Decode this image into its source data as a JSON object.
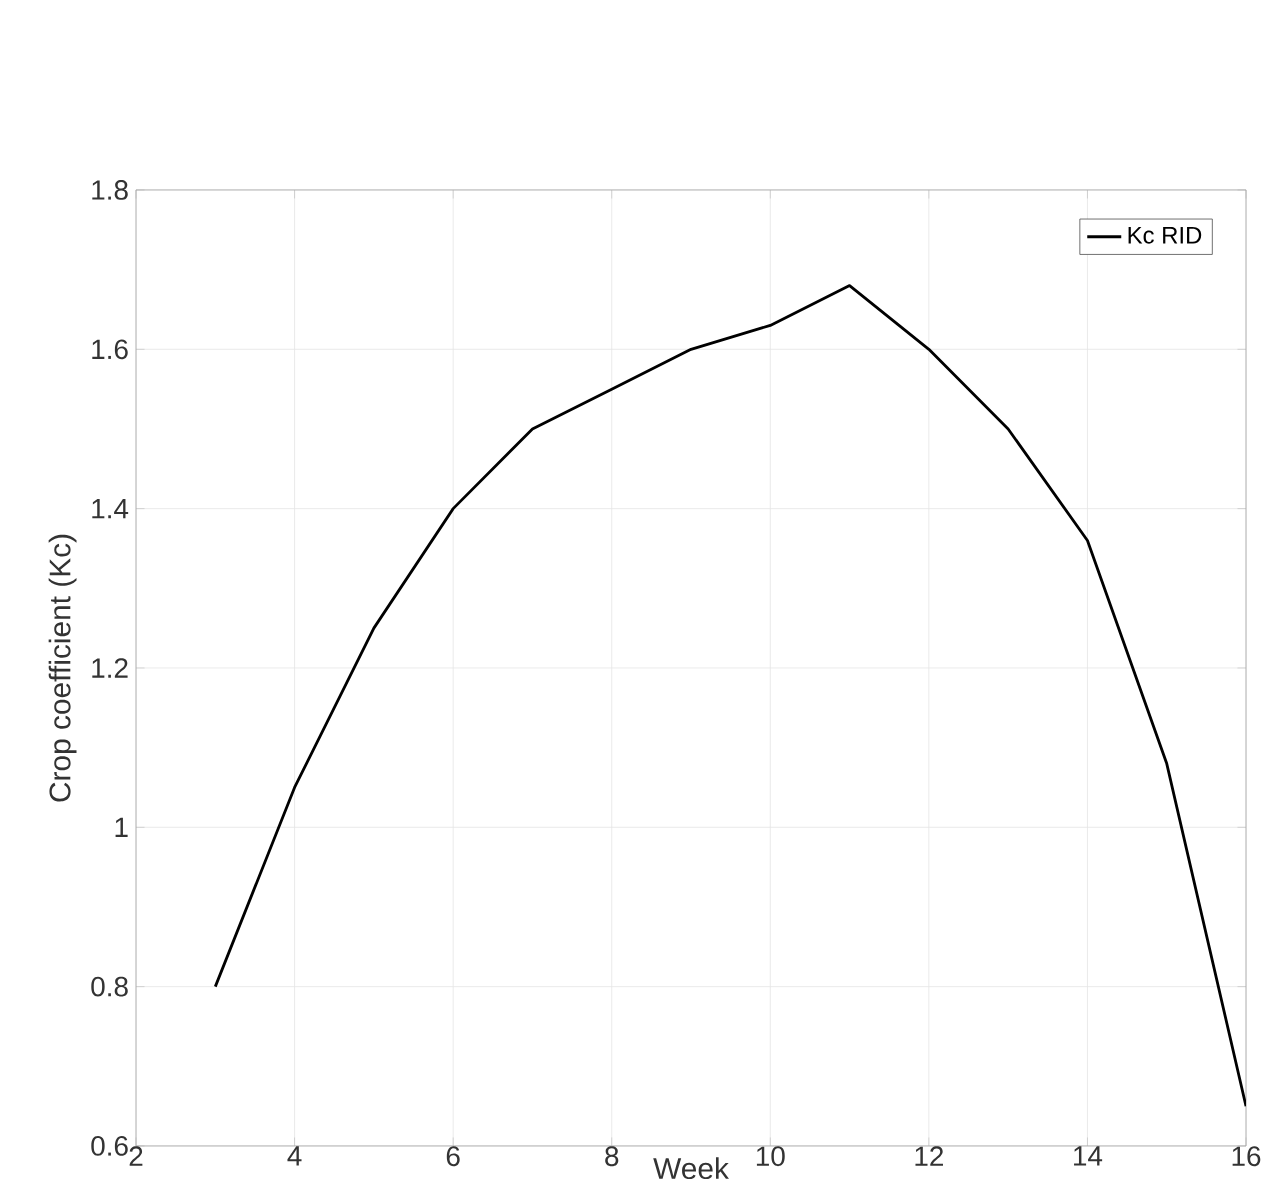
{
  "chart_data": {
    "type": "line",
    "xlabel": "Week",
    "ylabel": "Crop coefficient (Kc)",
    "x": [
      3,
      4,
      5,
      6,
      7,
      8,
      9,
      10,
      11,
      12,
      13,
      14,
      15,
      16
    ],
    "series": [
      {
        "name": "Kc RID",
        "color": "#000000",
        "values": [
          0.8,
          1.05,
          1.25,
          1.4,
          1.5,
          1.55,
          1.6,
          1.63,
          1.68,
          1.6,
          1.5,
          1.36,
          1.08,
          0.65
        ]
      }
    ],
    "xlim": [
      2,
      16
    ],
    "ylim": [
      0.6,
      1.8
    ],
    "xticks": [
      2,
      4,
      6,
      8,
      10,
      12,
      14,
      16
    ],
    "yticks": [
      0.6,
      0.8,
      1,
      1.2,
      1.4,
      1.6,
      1.8
    ],
    "grid": true,
    "legend": "top right",
    "line_style": "solid",
    "marker": "none"
  }
}
